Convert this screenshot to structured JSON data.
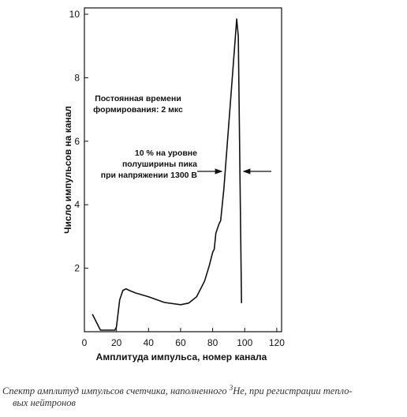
{
  "chart_data": {
    "type": "line",
    "xlabel": "Амплитуда импульса, номер канала",
    "ylabel": "Число импульсов на канал",
    "x": [
      5,
      10,
      15,
      19,
      20,
      22,
      24,
      26,
      28,
      32,
      40,
      50,
      60,
      65,
      70,
      75,
      78,
      80,
      81,
      82,
      84,
      85,
      87,
      90,
      93,
      95,
      96,
      98
    ],
    "series": [
      {
        "color": "#111111",
        "values": [
          0.55,
          0.05,
          0.05,
          0.05,
          0.15,
          1.0,
          1.3,
          1.35,
          1.3,
          1.22,
          1.1,
          0.92,
          0.85,
          0.9,
          1.1,
          1.6,
          2.1,
          2.5,
          2.6,
          3.1,
          3.4,
          3.5,
          4.5,
          6.5,
          8.5,
          9.85,
          9.3,
          0.9
        ]
      }
    ],
    "xlim": [
      0,
      123
    ],
    "ylim": [
      0,
      10.2
    ],
    "xticks": [
      0,
      20,
      40,
      60,
      80,
      100,
      120
    ],
    "yticks": [
      2,
      4,
      6,
      8,
      10
    ],
    "annotations": [
      {
        "lines": [
          "Постоянная времени",
          "формирования: 2 мкс"
        ]
      },
      {
        "lines": [
          "10 % на уровне",
          "полуширины пика",
          "при напряжении 1300 В"
        ]
      }
    ]
  },
  "caption": {
    "before": "Спектр амплитуд импульсов счетчика, наполненного ",
    "sup": "3",
    "after": "He, при регистрации тепло-",
    "line2": "вых нейтронов"
  }
}
